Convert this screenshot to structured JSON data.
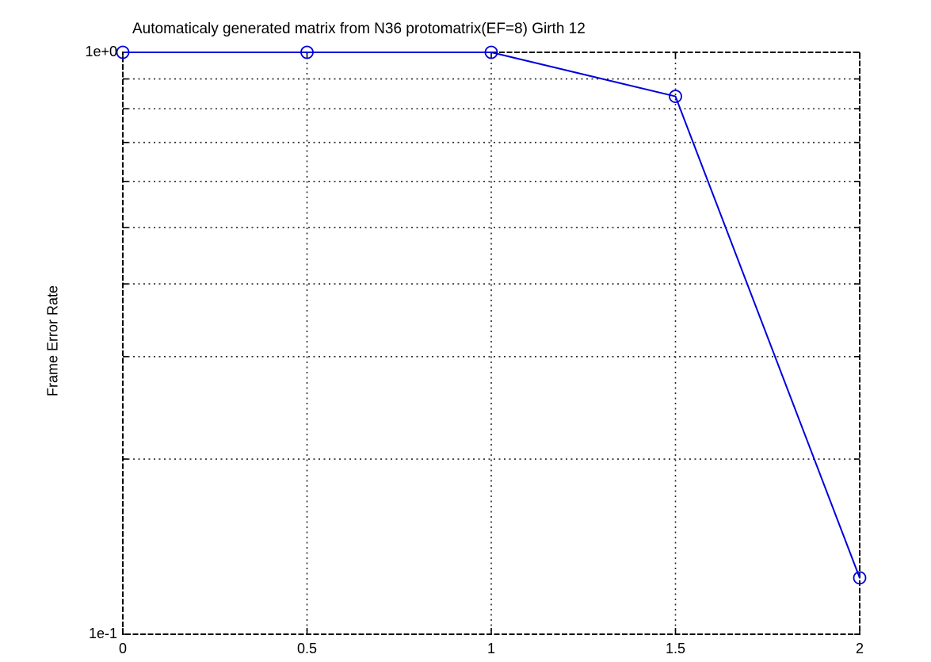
{
  "chart_data": {
    "type": "line",
    "title": "Automaticaly generated matrix from N36 protomatrix(EF=8) Girth 12",
    "xlabel": "",
    "ylabel": "Frame Error Rate",
    "x": [
      0,
      0.5,
      1,
      1.5,
      2
    ],
    "y": [
      1.0,
      1.0,
      1.0,
      0.84,
      0.125
    ],
    "xlim": [
      0,
      2
    ],
    "ylim": [
      0.1,
      1.0
    ],
    "yscale": "log",
    "xscale": "linear",
    "grid": true,
    "legend_position": "none",
    "x_ticks": {
      "values": [
        0,
        0.5,
        1,
        1.5,
        2
      ],
      "labels": [
        "0",
        "0.5",
        "1",
        "1.5",
        "2"
      ]
    },
    "y_ticks": {
      "values": [
        1.0,
        0.1
      ],
      "labels": [
        "1e+0",
        "1e-1"
      ]
    },
    "y_minor_gridlines": [
      0.9,
      0.8,
      0.7,
      0.6,
      0.5,
      0.4,
      0.3,
      0.2
    ],
    "x_gridlines": [
      0.5,
      1,
      1.5
    ],
    "marker": "open-circle",
    "line_color": "#0000dd",
    "grid_color": "#2a2a2a",
    "border_color": "#000000",
    "background_color": "#ffffff"
  }
}
